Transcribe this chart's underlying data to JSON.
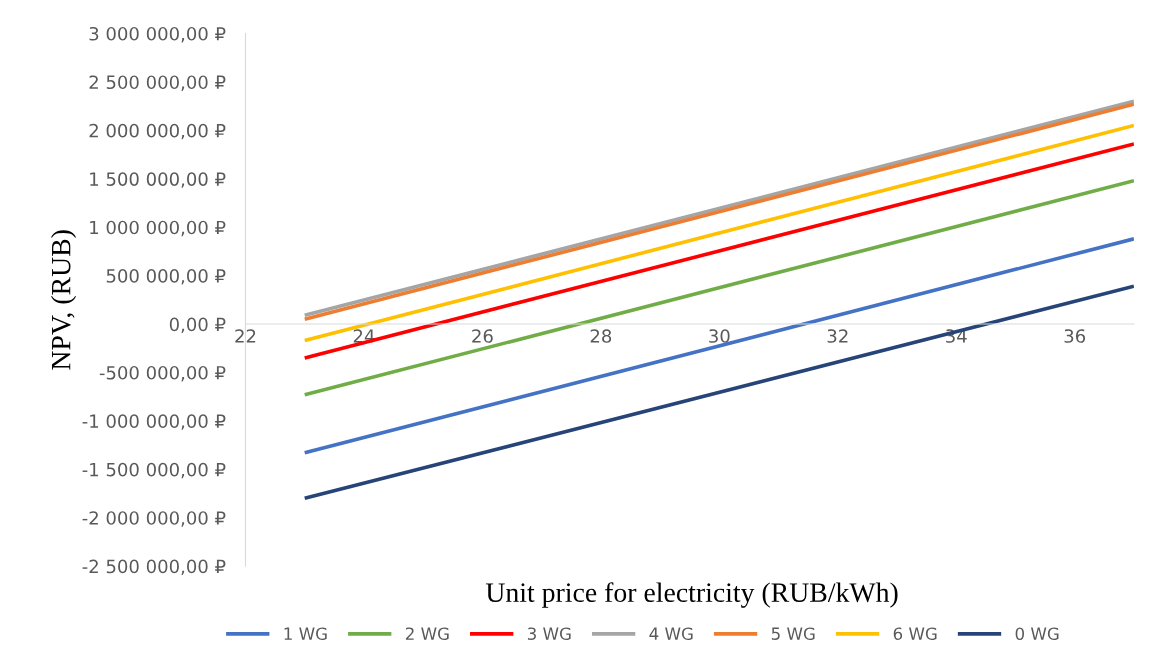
{
  "chart_data": {
    "type": "line",
    "xlabel": "Unit price for electricity (RUB/kWh)",
    "ylabel": "NPV, (RUB)",
    "x": [
      23,
      37
    ],
    "series": [
      {
        "name": "1 WG",
        "color": "#4472c4",
        "values": [
          -1330000,
          880000
        ]
      },
      {
        "name": "2 WG",
        "color": "#70ad47",
        "values": [
          -730000,
          1480000
        ]
      },
      {
        "name": "3 WG",
        "color": "#ff0000",
        "values": [
          -350000,
          1860000
        ]
      },
      {
        "name": "4 WG",
        "color": "#a5a5a5",
        "values": [
          90000,
          2300000
        ]
      },
      {
        "name": "5 WG",
        "color": "#ed7d31",
        "values": [
          50000,
          2270000
        ]
      },
      {
        "name": "6 WG",
        "color": "#ffc000",
        "values": [
          -170000,
          2050000
        ]
      },
      {
        "name": "0 WG",
        "color": "#264478",
        "values": [
          -1800000,
          390000
        ]
      }
    ],
    "xlim": [
      22,
      37
    ],
    "xticks": [
      22,
      24,
      26,
      28,
      30,
      32,
      34,
      36
    ],
    "ylim": [
      -2500000,
      3000000
    ],
    "yticks": [
      {
        "value": -2500000,
        "label": "-2 500 000,00 ₽"
      },
      {
        "value": -2000000,
        "label": "-2 000 000,00 ₽"
      },
      {
        "value": -1500000,
        "label": "-1 500 000,00 ₽"
      },
      {
        "value": -1000000,
        "label": "-1 000 000,00 ₽"
      },
      {
        "value": -500000,
        "label": "-500 000,00 ₽"
      },
      {
        "value": 0,
        "label": "0,00 ₽"
      },
      {
        "value": 500000,
        "label": "500 000,00 ₽"
      },
      {
        "value": 1000000,
        "label": "1 000 000,00 ₽"
      },
      {
        "value": 1500000,
        "label": "1 500 000,00 ₽"
      },
      {
        "value": 2000000,
        "label": "2 000 000,00 ₽"
      },
      {
        "value": 2500000,
        "label": "2 500 000,00 ₽"
      },
      {
        "value": 3000000,
        "label": "3 000 000,00 ₽"
      }
    ],
    "grid": false,
    "legend": "bottom",
    "marker": "none",
    "line_style": "solid"
  }
}
